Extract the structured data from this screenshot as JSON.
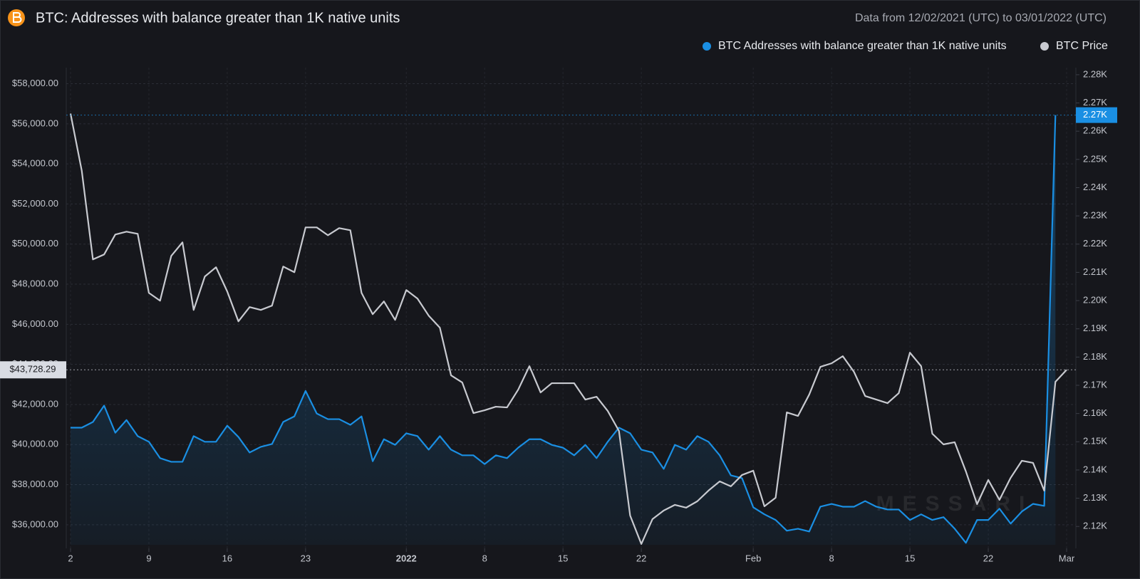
{
  "chart_data": {
    "type": "line",
    "title": "BTC: Addresses with balance greater than 1K native units",
    "subtitle": "Data from 12/02/2021 (UTC) to 03/01/2022 (UTC)",
    "watermark": "MESSARI",
    "categories": [
      "2",
      null,
      null,
      null,
      null,
      null,
      null,
      "9",
      null,
      null,
      null,
      null,
      null,
      null,
      "16",
      null,
      null,
      null,
      null,
      null,
      null,
      "23",
      null,
      null,
      null,
      null,
      null,
      null,
      null,
      null,
      "2022",
      null,
      null,
      null,
      null,
      null,
      null,
      "8",
      null,
      null,
      null,
      null,
      null,
      null,
      "15",
      null,
      null,
      null,
      null,
      null,
      null,
      "22",
      null,
      null,
      null,
      null,
      null,
      null,
      null,
      null,
      null,
      "Feb",
      null,
      null,
      null,
      null,
      null,
      null,
      "8",
      null,
      null,
      null,
      null,
      null,
      null,
      "15",
      null,
      null,
      null,
      null,
      null,
      null,
      "22",
      null,
      null,
      null,
      null,
      null,
      null,
      "Mar"
    ],
    "series": [
      {
        "name": "BTC Addresses with balance greater than 1K native units",
        "color": "#1a8fe3",
        "axis": "y2",
        "area": true,
        "values": [
          2155,
          2155,
          2157,
          2162.8,
          2153.2,
          2157.7,
          2152,
          2150,
          2144.2,
          2142.9,
          2142.9,
          2152,
          2150,
          2150,
          2155.7,
          2151.7,
          2146.2,
          2148.2,
          2149.2,
          2157,
          2159,
          2168,
          2160,
          2158,
          2158,
          2156,
          2159,
          2143.1,
          2150.9,
          2148.9,
          2153,
          2152,
          2147.2,
          2152,
          2147.2,
          2145.2,
          2145.2,
          2142.1,
          2145.2,
          2144.2,
          2147.9,
          2150.9,
          2150.9,
          2148.9,
          2147.9,
          2145.2,
          2148.9,
          2144.2,
          2150,
          2155,
          2153,
          2147.2,
          2146.2,
          2140.4,
          2148.9,
          2147.2,
          2152,
          2150,
          2145.2,
          2138.1,
          2137.1,
          2126.8,
          2124.3,
          2122.3,
          2118.5,
          2119.2,
          2118.2,
          2127,
          2128,
          2127,
          2127,
          2129,
          2127,
          2126,
          2126,
          2122.3,
          2124.3,
          2122.3,
          2123.3,
          2119.2,
          2114.2,
          2122.3,
          2122.3,
          2126.3,
          2121,
          2125.3,
          2128,
          2127.3,
          2265.7,
          null
        ]
      },
      {
        "name": "BTC Price",
        "color": "#c8cad0",
        "axis": "y",
        "values": [
          56508,
          53670,
          49234,
          49482,
          50476,
          50618,
          50511,
          47566,
          47176,
          49411,
          50085,
          46715,
          48383,
          48844,
          47637,
          46147,
          46857,
          46715,
          46928,
          48879,
          48595,
          50831,
          50831,
          50440,
          50795,
          50689,
          47566,
          46502,
          47141,
          46218,
          47708,
          47283,
          46431,
          45828,
          43451,
          43096,
          41570,
          41712,
          41890,
          41854,
          42741,
          43912,
          42599,
          43061,
          43061,
          43061,
          42244,
          42386,
          41677,
          40683,
          36461,
          35042,
          36284,
          36710,
          36993,
          36852,
          37171,
          37703,
          38164,
          37916,
          38484,
          38697,
          36922,
          37348,
          41606,
          41428,
          42493,
          43877,
          44054,
          44409,
          43628,
          42422,
          42244,
          42067,
          42564,
          44586,
          43912,
          40541,
          40009,
          40116,
          38661,
          37029,
          38235,
          37242,
          38342,
          39193,
          39087,
          37703,
          43131,
          43728.29
        ]
      }
    ],
    "ylim": [
      35000,
      58800
    ],
    "yticks": [
      {
        "value": 36000,
        "label": "$36,000.00"
      },
      {
        "value": 38000,
        "label": "$38,000.00"
      },
      {
        "value": 40000,
        "label": "$40,000.00"
      },
      {
        "value": 42000,
        "label": "$42,000.00"
      },
      {
        "value": 44000,
        "label": "$44,000.00"
      },
      {
        "value": 46000,
        "label": "$46,000.00"
      },
      {
        "value": 48000,
        "label": "$48,000.00"
      },
      {
        "value": 50000,
        "label": "$50,000.00"
      },
      {
        "value": 52000,
        "label": "$52,000.00"
      },
      {
        "value": 54000,
        "label": "$54,000.00"
      },
      {
        "value": 56000,
        "label": "$56,000.00"
      },
      {
        "value": 58000,
        "label": "$58,000.00"
      }
    ],
    "y2lim": [
      2113.5,
      2282.5
    ],
    "y2ticks": [
      {
        "value": 2120,
        "label": "2.12K"
      },
      {
        "value": 2130,
        "label": "2.13K"
      },
      {
        "value": 2140,
        "label": "2.14K"
      },
      {
        "value": 2150,
        "label": "2.15K"
      },
      {
        "value": 2160,
        "label": "2.16K"
      },
      {
        "value": 2170,
        "label": "2.17K"
      },
      {
        "value": 2180,
        "label": "2.18K"
      },
      {
        "value": 2190,
        "label": "2.19K"
      },
      {
        "value": 2200,
        "label": "2.20K"
      },
      {
        "value": 2210,
        "label": "2.21K"
      },
      {
        "value": 2220,
        "label": "2.22K"
      },
      {
        "value": 2230,
        "label": "2.23K"
      },
      {
        "value": 2240,
        "label": "2.24K"
      },
      {
        "value": 2250,
        "label": "2.25K"
      },
      {
        "value": 2260,
        "label": "2.26K"
      },
      {
        "value": 2270,
        "label": "2.27K"
      },
      {
        "value": 2280,
        "label": "2.28K"
      }
    ],
    "annotations": [
      {
        "axis": "y",
        "value": 43728.29,
        "label": "$43,728.29",
        "color": "#d9dce3"
      },
      {
        "axis": "y2",
        "value": 2265.7,
        "label": "2.27K",
        "color": "#1a8fe3"
      }
    ],
    "grid": true
  }
}
